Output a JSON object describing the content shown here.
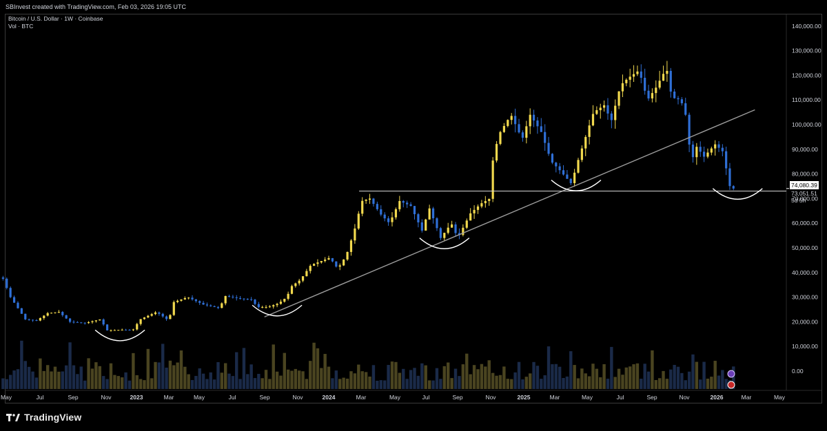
{
  "header": {
    "attribution": "SBInvest created with TradingView.com, Feb 03, 2026 19:05 UTC"
  },
  "legend": {
    "symbol": "Bitcoin / U.S. Dollar · 1W · Coinbase",
    "volume": "Vol · BTC"
  },
  "price_labels": {
    "last_price": "74,080.39",
    "support_level": "73,051.51",
    "countdown": "5d 5h"
  },
  "brand": {
    "name": "TradingView"
  },
  "colors": {
    "background": "#000000",
    "bull_candle": "#f2d94e",
    "bear_candle": "#2f6fd6",
    "bull_volume": "#4a4420",
    "bear_volume": "#1a2a48",
    "trendline": "#9c9c9c",
    "support_line": "#d8d8d8",
    "annotation_arcs": "#ffffff"
  },
  "chart_data": {
    "type": "candlestick",
    "title": "Bitcoin / U.S. Dollar · 1W · Coinbase",
    "timeframe": "1W",
    "y_axis": {
      "ticks": [
        0,
        10000,
        20000,
        30000,
        40000,
        50000,
        60000,
        70000,
        80000,
        90000,
        100000,
        110000,
        120000,
        130000,
        140000
      ],
      "tick_labels": [
        "0.00",
        "10,000.00",
        "20,000.00",
        "30,000.00",
        "40,000.00",
        "50,000.00",
        "60,000.00",
        "70,000.00",
        "80,000.00",
        "90,000.00",
        "100,000.00",
        "110,000.00",
        "120,000.00",
        "130,000.00",
        "140,000.00"
      ]
    },
    "x_axis": {
      "labels": [
        "May",
        "Jul",
        "Sep",
        "Nov",
        "2023",
        "Mar",
        "May",
        "Jul",
        "Sep",
        "Nov",
        "2024",
        "Mar",
        "May",
        "Jul",
        "Sep",
        "Nov",
        "2025",
        "Mar",
        "May",
        "Jul",
        "Sep",
        "Nov",
        "2026",
        "Mar",
        "May"
      ],
      "bold_labels": [
        "2023",
        "2024",
        "2025",
        "2026"
      ]
    },
    "price_path": [
      [
        "2022-05-01",
        38000
      ],
      [
        "2022-05-16",
        30000
      ],
      [
        "2022-06-13",
        21000
      ],
      [
        "2022-07-04",
        20500
      ],
      [
        "2022-07-25",
        23500
      ],
      [
        "2022-08-15",
        24000
      ],
      [
        "2022-09-05",
        20000
      ],
      [
        "2022-10-03",
        19500
      ],
      [
        "2022-11-01",
        21000
      ],
      [
        "2022-11-14",
        16500
      ],
      [
        "2022-12-15",
        16800
      ],
      [
        "2023-01-01",
        16600
      ],
      [
        "2023-01-15",
        21000
      ],
      [
        "2023-02-15",
        24000
      ],
      [
        "2023-03-10",
        20500
      ],
      [
        "2023-03-20",
        28000
      ],
      [
        "2023-04-15",
        30000
      ],
      [
        "2023-05-15",
        27000
      ],
      [
        "2023-06-15",
        25500
      ],
      [
        "2023-06-25",
        30500
      ],
      [
        "2023-07-20",
        29500
      ],
      [
        "2023-08-15",
        29000
      ],
      [
        "2023-08-25",
        26000
      ],
      [
        "2023-09-15",
        26000
      ],
      [
        "2023-10-05",
        27500
      ],
      [
        "2023-10-20",
        30000
      ],
      [
        "2023-10-30",
        34500
      ],
      [
        "2023-11-15",
        37000
      ],
      [
        "2023-12-05",
        43000
      ],
      [
        "2024-01-10",
        46000
      ],
      [
        "2024-01-25",
        41500
      ],
      [
        "2024-02-10",
        47000
      ],
      [
        "2024-02-25",
        57000
      ],
      [
        "2024-03-10",
        69000
      ],
      [
        "2024-03-25",
        70000
      ],
      [
        "2024-04-15",
        63500
      ],
      [
        "2024-05-01",
        60000
      ],
      [
        "2024-05-20",
        69000
      ],
      [
        "2024-06-10",
        67000
      ],
      [
        "2024-07-01",
        57000
      ],
      [
        "2024-07-15",
        66000
      ],
      [
        "2024-08-05",
        54000
      ],
      [
        "2024-08-25",
        60000
      ],
      [
        "2024-09-06",
        54000
      ],
      [
        "2024-09-30",
        64000
      ],
      [
        "2024-10-20",
        68000
      ],
      [
        "2024-11-05",
        70000
      ],
      [
        "2024-11-12",
        88000
      ],
      [
        "2024-11-25",
        97000
      ],
      [
        "2024-12-15",
        104000
      ],
      [
        "2025-01-05",
        94000
      ],
      [
        "2025-01-20",
        104000
      ],
      [
        "2025-02-10",
        97000
      ],
      [
        "2025-03-01",
        85000
      ],
      [
        "2025-03-15",
        82000
      ],
      [
        "2025-04-08",
        76000
      ],
      [
        "2025-04-20",
        85000
      ],
      [
        "2025-05-05",
        95000
      ],
      [
        "2025-05-20",
        105000
      ],
      [
        "2025-06-10",
        108000
      ],
      [
        "2025-06-22",
        101000
      ],
      [
        "2025-07-10",
        116000
      ],
      [
        "2025-07-25",
        119000
      ],
      [
        "2025-08-14",
        122000
      ],
      [
        "2025-08-30",
        110000
      ],
      [
        "2025-09-15",
        115000
      ],
      [
        "2025-10-05",
        123000
      ],
      [
        "2025-10-15",
        111000
      ],
      [
        "2025-11-01",
        110000
      ],
      [
        "2025-11-10",
        104000
      ],
      [
        "2025-11-21",
        85000
      ],
      [
        "2025-12-01",
        91000
      ],
      [
        "2025-12-15",
        87000
      ],
      [
        "2026-01-05",
        92000
      ],
      [
        "2026-01-20",
        89000
      ],
      [
        "2026-01-28",
        80000
      ],
      [
        "2026-02-03",
        74080
      ]
    ],
    "annotations": {
      "trendline": [
        [
          "2023-09-01",
          22000
        ],
        [
          "2026-03-15",
          106000
        ]
      ],
      "support_price": 73051.51,
      "support_from": "2024-02-27",
      "arcs_under": [
        "2022-12-01",
        "2023-09-25",
        "2024-08-05",
        "2025-04-10",
        "2026-02-10"
      ]
    }
  }
}
